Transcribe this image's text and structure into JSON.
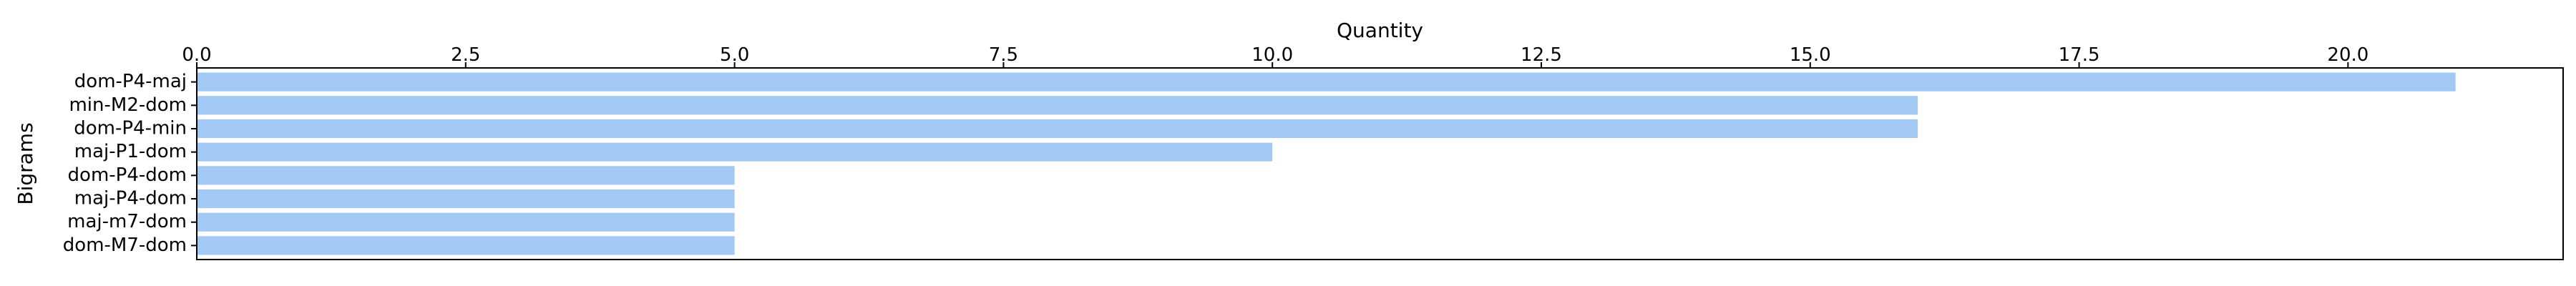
{
  "chart_data": {
    "type": "bar",
    "orientation": "horizontal",
    "xlabel": "Quantity",
    "ylabel": "Bigrams",
    "xaxis_position": "top",
    "xlim": [
      0,
      22
    ],
    "xticks": [
      0.0,
      2.5,
      5.0,
      7.5,
      10.0,
      12.5,
      15.0,
      17.5,
      20.0
    ],
    "xtick_labels": [
      "0.0",
      "2.5",
      "5.0",
      "7.5",
      "10.0",
      "12.5",
      "15.0",
      "17.5",
      "20.0"
    ],
    "categories": [
      "dom-P4-maj",
      "min-M2-dom",
      "dom-P4-min",
      "maj-P1-dom",
      "dom-P4-dom",
      "maj-P4-dom",
      "maj-m7-dom",
      "dom-M7-dom"
    ],
    "values": [
      21,
      16,
      16,
      10,
      5,
      5,
      5,
      5
    ],
    "bar_color": "#a1c9f4",
    "grid": false,
    "legend": false
  }
}
